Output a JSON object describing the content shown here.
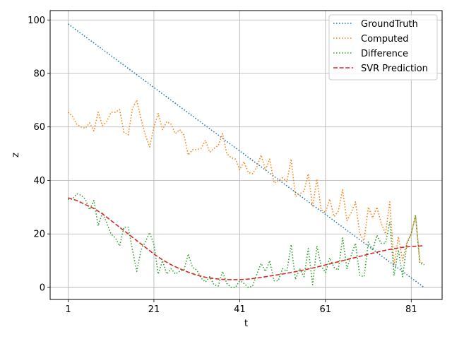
{
  "chart_data": {
    "type": "line",
    "xlabel": "t",
    "ylabel": "z",
    "xlim": [
      -3.2,
      88.2
    ],
    "ylim": [
      -4.5,
      103.5
    ],
    "xticks": [
      1,
      21,
      41,
      61,
      81
    ],
    "yticks": [
      0,
      20,
      40,
      60,
      80,
      100
    ],
    "grid": true,
    "legend_position": "top-right",
    "series": [
      {
        "name": "GroundTruth",
        "color": "#1f77b4",
        "style": "dotted",
        "x": [
          1,
          84
        ],
        "y": [
          98.5,
          0
        ]
      },
      {
        "name": "Computed",
        "color": "#ff7f0e",
        "style": "dotted",
        "x": [
          1,
          2,
          3,
          4,
          5,
          6,
          7,
          8,
          9,
          10,
          11,
          12,
          13,
          14,
          15,
          16,
          17,
          18,
          19,
          20,
          21,
          22,
          23,
          24,
          25,
          26,
          27,
          28,
          29,
          30,
          31,
          32,
          33,
          34,
          35,
          36,
          37,
          38,
          39,
          40,
          41,
          42,
          43,
          44,
          45,
          46,
          47,
          48,
          49,
          50,
          51,
          52,
          53,
          54,
          55,
          56,
          57,
          58,
          59,
          60,
          61,
          62,
          63,
          64,
          65,
          66,
          67,
          68,
          69,
          70,
          71,
          72,
          73,
          74,
          75,
          76,
          77,
          78,
          79,
          80,
          81,
          82,
          83,
          84
        ],
        "y": [
          65.5,
          64,
          61,
          60,
          59.5,
          61.5,
          58.5,
          65.5,
          60.5,
          62,
          65.5,
          65.5,
          66.5,
          58,
          57,
          67,
          70,
          63,
          57,
          52.5,
          60,
          65,
          59,
          62,
          61,
          57.5,
          59,
          57,
          49.5,
          51.5,
          51.5,
          52,
          55,
          50.5,
          52,
          53,
          57.5,
          50,
          48.5,
          48,
          44,
          47,
          43,
          42.5,
          45,
          49.5,
          44,
          48,
          39,
          40,
          41,
          39.5,
          48,
          34,
          35,
          36,
          42.5,
          30,
          40.5,
          29,
          28,
          33,
          26.5,
          28.5,
          36.5,
          25,
          28,
          32,
          20,
          17.5,
          30,
          26,
          30,
          24,
          20,
          32,
          8.5,
          19,
          10,
          17,
          20,
          27,
          10,
          8.5
        ]
      },
      {
        "name": "Difference",
        "color": "#2ca02c",
        "style": "dotted",
        "x": [
          1,
          2,
          3,
          4,
          5,
          6,
          7,
          8,
          9,
          10,
          11,
          12,
          13,
          14,
          15,
          16,
          17,
          18,
          19,
          20,
          21,
          22,
          23,
          24,
          25,
          26,
          27,
          28,
          29,
          30,
          31,
          32,
          33,
          34,
          35,
          36,
          37,
          38,
          39,
          40,
          41,
          42,
          43,
          44,
          45,
          46,
          47,
          48,
          49,
          50,
          51,
          52,
          53,
          54,
          55,
          56,
          57,
          58,
          59,
          60,
          61,
          62,
          63,
          64,
          65,
          66,
          67,
          68,
          69,
          70,
          71,
          72,
          73,
          74,
          75,
          76,
          77,
          78,
          79,
          80,
          81,
          82,
          83,
          84
        ],
        "y": [
          33,
          33,
          35,
          34.5,
          33,
          29,
          32.5,
          23,
          28,
          24,
          20,
          18.5,
          15.5,
          22.5,
          22.5,
          14,
          6,
          14,
          17,
          20.5,
          16,
          5,
          10,
          5,
          7,
          5,
          6,
          6.5,
          12.5,
          7.5,
          6.5,
          3.5,
          2,
          4,
          1,
          0.5,
          6,
          1.5,
          0,
          0,
          2.5,
          1.5,
          0,
          0.5,
          5,
          9,
          6,
          10,
          2.5,
          2.5,
          7,
          6,
          16,
          3,
          7,
          4,
          14.5,
          1,
          15.5,
          8,
          5.5,
          11,
          7.5,
          6.5,
          18.5,
          7,
          12,
          16.5,
          4.5,
          4,
          17,
          14,
          19.5,
          16.5,
          16.5,
          24.5,
          4.5,
          14,
          4,
          16.5,
          20,
          27,
          9,
          8.5
        ]
      },
      {
        "name": "SVR Prediction",
        "color": "#d62728",
        "style": "dashed",
        "x": [
          1,
          3,
          5,
          7,
          9,
          11,
          13,
          15,
          17,
          19,
          21,
          23,
          25,
          27,
          29,
          31,
          33,
          35,
          37,
          39,
          41,
          43,
          45,
          47,
          49,
          51,
          53,
          55,
          57,
          59,
          61,
          63,
          65,
          67,
          69,
          71,
          73,
          75,
          77,
          79,
          81,
          83,
          84
        ],
        "y": [
          33.5,
          32.5,
          31,
          29.5,
          27.5,
          25,
          22.5,
          20,
          17.5,
          15,
          12.5,
          10.3,
          8.5,
          7,
          5.7,
          4.6,
          3.8,
          3.3,
          3,
          2.9,
          2.9,
          3.1,
          3.5,
          4,
          4.5,
          5,
          5.6,
          6.2,
          6.9,
          7.6,
          8.4,
          9.2,
          10,
          10.8,
          11.6,
          12.4,
          13.2,
          13.9,
          14.5,
          15,
          15.3,
          15.5,
          15.6
        ]
      }
    ]
  }
}
